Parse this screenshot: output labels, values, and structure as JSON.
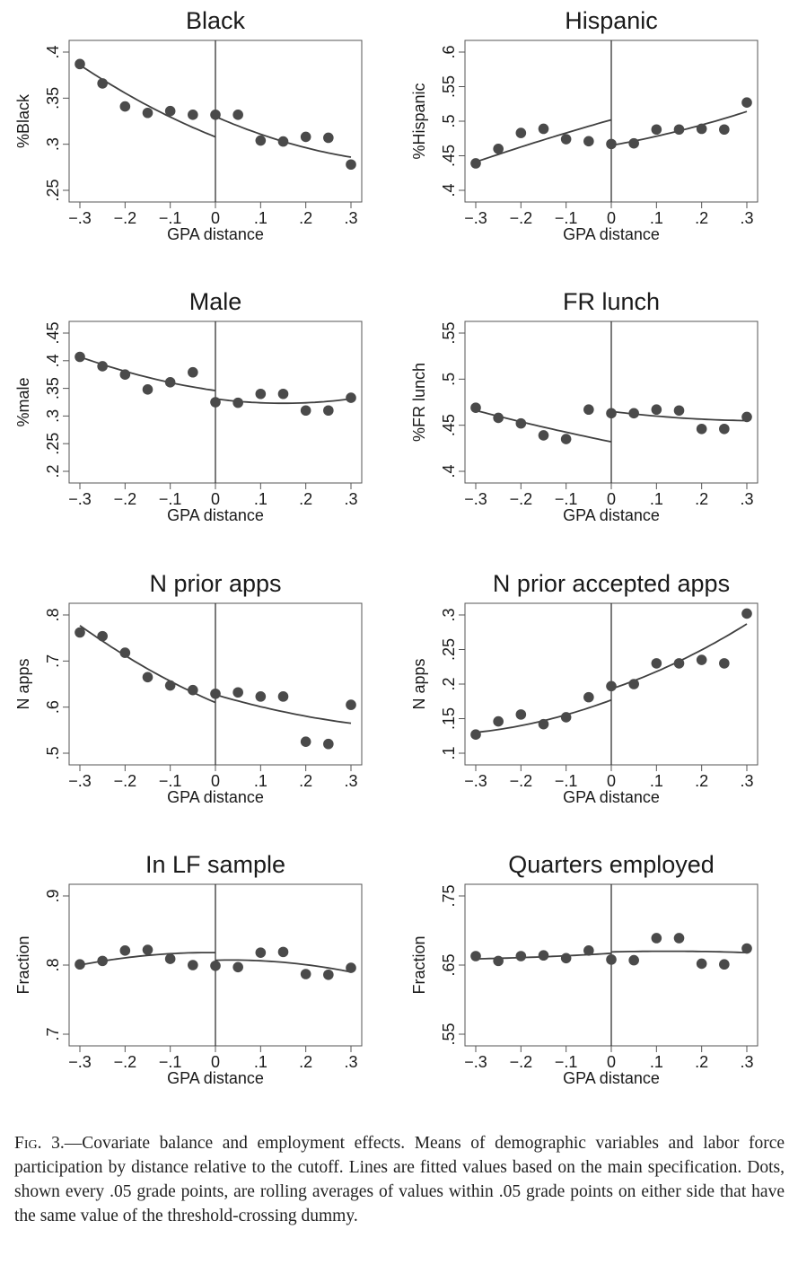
{
  "chart_data": [
    {
      "type": "scatter",
      "title": "Black",
      "xlabel": "GPA distance",
      "ylabel": "%Black",
      "xlim": [
        -0.3,
        0.3
      ],
      "ylim": [
        0.25,
        0.4
      ],
      "yticks": [
        0.25,
        0.3,
        0.35,
        0.4
      ],
      "ytick_labels": [
        ".25",
        ".3",
        ".35",
        ".4"
      ],
      "xticks": [
        -0.3,
        -0.2,
        -0.1,
        0,
        0.1,
        0.2,
        0.3
      ],
      "xtick_labels": [
        "−.3",
        "−.2",
        "−.1",
        "0",
        ".1",
        ".2",
        ".3"
      ],
      "points": {
        "x": [
          -0.3,
          -0.25,
          -0.2,
          -0.15,
          -0.1,
          -0.05,
          0,
          0.05,
          0.1,
          0.15,
          0.2,
          0.25,
          0.3
        ],
        "y": [
          0.387,
          0.366,
          0.341,
          0.334,
          0.336,
          0.332,
          0.332,
          0.332,
          0.304,
          0.303,
          0.308,
          0.307,
          0.278
        ]
      },
      "fit_left": {
        "x": [
          -0.3,
          -0.15,
          0
        ],
        "y": [
          0.386,
          0.342,
          0.308
        ]
      },
      "fit_right": {
        "x": [
          0,
          0.15,
          0.3
        ],
        "y": [
          0.33,
          0.303,
          0.286
        ]
      }
    },
    {
      "type": "scatter",
      "title": "Hispanic",
      "xlabel": "GPA distance",
      "ylabel": "%Hispanic",
      "xlim": [
        -0.3,
        0.3
      ],
      "ylim": [
        0.4,
        0.6
      ],
      "yticks": [
        0.4,
        0.45,
        0.5,
        0.55,
        0.6
      ],
      "ytick_labels": [
        ".4",
        ".45",
        ".5",
        ".55",
        ".6"
      ],
      "xticks": [
        -0.3,
        -0.2,
        -0.1,
        0,
        0.1,
        0.2,
        0.3
      ],
      "xtick_labels": [
        "−.3",
        "−.2",
        "−.1",
        "0",
        ".1",
        ".2",
        ".3"
      ],
      "points": {
        "x": [
          -0.3,
          -0.25,
          -0.2,
          -0.15,
          -0.1,
          -0.05,
          0,
          0.05,
          0.1,
          0.15,
          0.2,
          0.25,
          0.3
        ],
        "y": [
          0.439,
          0.46,
          0.483,
          0.489,
          0.474,
          0.471,
          0.467,
          0.468,
          0.488,
          0.488,
          0.489,
          0.488,
          0.527
        ]
      },
      "fit_left": {
        "x": [
          -0.3,
          -0.15,
          0
        ],
        "y": [
          0.441,
          0.473,
          0.502
        ]
      },
      "fit_right": {
        "x": [
          0,
          0.15,
          0.3
        ],
        "y": [
          0.465,
          0.486,
          0.514
        ]
      }
    },
    {
      "type": "scatter",
      "title": "Male",
      "xlabel": "GPA distance",
      "ylabel": "%male",
      "xlim": [
        -0.3,
        0.3
      ],
      "ylim": [
        0.2,
        0.45
      ],
      "yticks": [
        0.2,
        0.25,
        0.3,
        0.35,
        0.4,
        0.45
      ],
      "ytick_labels": [
        ".2",
        ".25",
        ".3",
        ".35",
        ".4",
        ".45"
      ],
      "xticks": [
        -0.3,
        -0.2,
        -0.1,
        0,
        0.1,
        0.2,
        0.3
      ],
      "xtick_labels": [
        "−.3",
        "−.2",
        "−.1",
        "0",
        ".1",
        ".2",
        ".3"
      ],
      "points": {
        "x": [
          -0.3,
          -0.25,
          -0.2,
          -0.15,
          -0.1,
          -0.05,
          0,
          0.05,
          0.1,
          0.15,
          0.2,
          0.25,
          0.3
        ],
        "y": [
          0.407,
          0.39,
          0.375,
          0.348,
          0.361,
          0.379,
          0.325,
          0.324,
          0.34,
          0.34,
          0.31,
          0.31,
          0.333
        ]
      },
      "fit_left": {
        "x": [
          -0.3,
          -0.15,
          0
        ],
        "y": [
          0.407,
          0.37,
          0.346
        ]
      },
      "fit_right": {
        "x": [
          0,
          0.15,
          0.3
        ],
        "y": [
          0.331,
          0.323,
          0.331
        ]
      }
    },
    {
      "type": "scatter",
      "title": "FR lunch",
      "xlabel": "GPA distance",
      "ylabel": "%FR lunch",
      "xlim": [
        -0.3,
        0.3
      ],
      "ylim": [
        0.4,
        0.55
      ],
      "yticks": [
        0.4,
        0.45,
        0.5,
        0.55
      ],
      "ytick_labels": [
        ".4",
        ".45",
        ".5",
        ".55"
      ],
      "xticks": [
        -0.3,
        -0.2,
        -0.1,
        0,
        0.1,
        0.2,
        0.3
      ],
      "xtick_labels": [
        "−.3",
        "−.2",
        "−.1",
        "0",
        ".1",
        ".2",
        ".3"
      ],
      "points": {
        "x": [
          -0.3,
          -0.25,
          -0.2,
          -0.15,
          -0.1,
          -0.05,
          0,
          0.05,
          0.1,
          0.15,
          0.2,
          0.25,
          0.3
        ],
        "y": [
          0.469,
          0.458,
          0.452,
          0.439,
          0.435,
          0.467,
          0.463,
          0.463,
          0.467,
          0.466,
          0.446,
          0.446,
          0.459
        ]
      },
      "fit_left": {
        "x": [
          -0.3,
          -0.15,
          0
        ],
        "y": [
          0.466,
          0.448,
          0.432
        ]
      },
      "fit_right": {
        "x": [
          0,
          0.15,
          0.3
        ],
        "y": [
          0.465,
          0.458,
          0.455
        ]
      }
    },
    {
      "type": "scatter",
      "title": "N prior apps",
      "xlabel": "GPA distance",
      "ylabel": "N apps",
      "xlim": [
        -0.3,
        0.3
      ],
      "ylim": [
        0.5,
        0.8
      ],
      "yticks": [
        0.5,
        0.6,
        0.7,
        0.8
      ],
      "ytick_labels": [
        ".5",
        ".6",
        ".7",
        ".8"
      ],
      "xticks": [
        -0.3,
        -0.2,
        -0.1,
        0,
        0.1,
        0.2,
        0.3
      ],
      "xtick_labels": [
        "−.3",
        "−.2",
        "−.1",
        "0",
        ".1",
        ".2",
        ".3"
      ],
      "points": {
        "x": [
          -0.3,
          -0.25,
          -0.2,
          -0.15,
          -0.1,
          -0.05,
          0,
          0.05,
          0.1,
          0.15,
          0.2,
          0.25,
          0.3
        ],
        "y": [
          0.762,
          0.754,
          0.718,
          0.665,
          0.647,
          0.637,
          0.629,
          0.632,
          0.623,
          0.623,
          0.525,
          0.52,
          0.605
        ]
      },
      "fit_left": {
        "x": [
          -0.3,
          -0.15,
          0
        ],
        "y": [
          0.777,
          0.683,
          0.61
        ]
      },
      "fit_right": {
        "x": [
          0,
          0.15,
          0.3
        ],
        "y": [
          0.627,
          0.59,
          0.565
        ]
      }
    },
    {
      "type": "scatter",
      "title": "N prior accepted apps",
      "xlabel": "GPA distance",
      "ylabel": "N apps",
      "xlim": [
        -0.3,
        0.3
      ],
      "ylim": [
        0.1,
        0.3
      ],
      "yticks": [
        0.1,
        0.15,
        0.2,
        0.25,
        0.3
      ],
      "ytick_labels": [
        ".1",
        ".15",
        ".2",
        ".25",
        ".3"
      ],
      "xticks": [
        -0.3,
        -0.2,
        -0.1,
        0,
        0.1,
        0.2,
        0.3
      ],
      "xtick_labels": [
        "−.3",
        "−.2",
        "−.1",
        "0",
        ".1",
        ".2",
        ".3"
      ],
      "points": {
        "x": [
          -0.3,
          -0.25,
          -0.2,
          -0.15,
          -0.1,
          -0.05,
          0,
          0.05,
          0.1,
          0.15,
          0.2,
          0.25,
          0.3
        ],
        "y": [
          0.127,
          0.146,
          0.156,
          0.142,
          0.152,
          0.181,
          0.197,
          0.2,
          0.23,
          0.23,
          0.235,
          0.23,
          0.302
        ]
      },
      "fit_left": {
        "x": [
          -0.3,
          -0.15,
          0
        ],
        "y": [
          0.13,
          0.147,
          0.177
        ]
      },
      "fit_right": {
        "x": [
          0,
          0.15,
          0.3
        ],
        "y": [
          0.193,
          0.233,
          0.287
        ]
      }
    },
    {
      "type": "scatter",
      "title": "In LF sample",
      "xlabel": "GPA distance",
      "ylabel": "Fraction",
      "xlim": [
        -0.3,
        0.3
      ],
      "ylim": [
        0.7,
        0.9
      ],
      "yticks": [
        0.7,
        0.8,
        0.9
      ],
      "ytick_labels": [
        ".7",
        ".8",
        ".9"
      ],
      "xticks": [
        -0.3,
        -0.2,
        -0.1,
        0,
        0.1,
        0.2,
        0.3
      ],
      "xtick_labels": [
        "−.3",
        "−.2",
        "−.1",
        "0",
        ".1",
        ".2",
        ".3"
      ],
      "points": {
        "x": [
          -0.3,
          -0.25,
          -0.2,
          -0.15,
          -0.1,
          -0.05,
          0,
          0.05,
          0.1,
          0.15,
          0.2,
          0.25,
          0.3
        ],
        "y": [
          0.801,
          0.806,
          0.821,
          0.822,
          0.809,
          0.8,
          0.799,
          0.797,
          0.818,
          0.819,
          0.787,
          0.786,
          0.796
        ]
      },
      "fit_left": {
        "x": [
          -0.3,
          -0.15,
          0
        ],
        "y": [
          0.8,
          0.814,
          0.818
        ]
      },
      "fit_right": {
        "x": [
          0,
          0.15,
          0.3
        ],
        "y": [
          0.807,
          0.804,
          0.79
        ]
      }
    },
    {
      "type": "scatter",
      "title": "Quarters employed",
      "xlabel": "GPA distance",
      "ylabel": "Fraction",
      "xlim": [
        -0.3,
        0.3
      ],
      "ylim": [
        0.55,
        0.75
      ],
      "yticks": [
        0.55,
        0.65,
        0.75
      ],
      "ytick_labels": [
        ".55",
        ".65",
        ".75"
      ],
      "xticks": [
        -0.3,
        -0.2,
        -0.1,
        0,
        0.1,
        0.2,
        0.3
      ],
      "xtick_labels": [
        "−.3",
        "−.2",
        "−.1",
        "0",
        ".1",
        ".2",
        ".3"
      ],
      "points": {
        "x": [
          -0.3,
          -0.25,
          -0.2,
          -0.15,
          -0.1,
          -0.05,
          0,
          0.05,
          0.1,
          0.15,
          0.2,
          0.25,
          0.3
        ],
        "y": [
          0.663,
          0.656,
          0.663,
          0.664,
          0.66,
          0.671,
          0.658,
          0.657,
          0.689,
          0.689,
          0.652,
          0.651,
          0.674
        ]
      },
      "fit_left": {
        "x": [
          -0.3,
          -0.15,
          0
        ],
        "y": [
          0.659,
          0.662,
          0.667
        ]
      },
      "fit_right": {
        "x": [
          0,
          0.15,
          0.3
        ],
        "y": [
          0.669,
          0.67,
          0.668
        ]
      }
    }
  ],
  "caption": {
    "label": "Fig. 3.",
    "text": "—Covariate balance and employment effects. Means of demographic variables and labor force participation by distance relative to the cutoff. Lines are fitted values based on the main specification. Dots, shown every .05 grade points, are rolling averages of values within .05 grade points on either side that have the same value of the threshold-crossing dummy."
  }
}
